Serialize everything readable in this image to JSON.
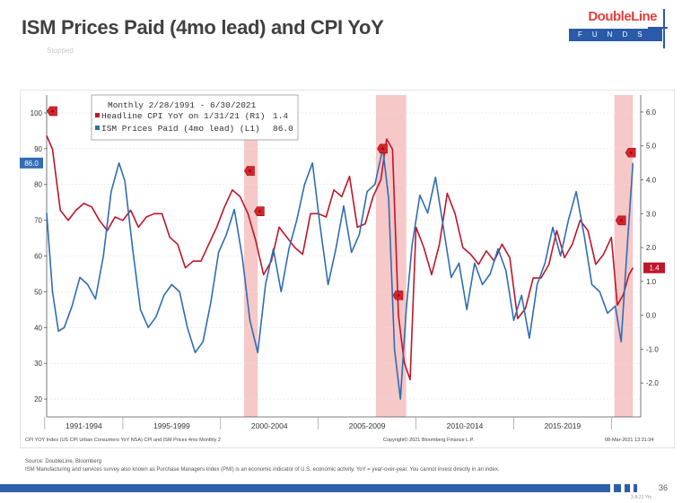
{
  "slide": {
    "title": "ISM Prices Paid (4mo lead) and CPI YoY",
    "status": "Stopped",
    "source_line1": "Source: DoubleLine, Bloomberg",
    "source_line2": "ISM Manufacturing and services survey also known as Purchase Managers Index (PMI) is an economic indicator of U.S. economic activity. YoY = year-over-year. You cannot invest directly in an index.",
    "page_number": "36",
    "footer_date": "3-8-21 Yts"
  },
  "logo": {
    "brand": "DoubleLine",
    "sub": "FUNDS"
  },
  "colors": {
    "cpi": "#c0152a",
    "ism": "#2f6db3",
    "recession": "#f6c8c8",
    "footer_bar": "#2f5fa8",
    "logo_red": "#e0413a"
  },
  "chart_data": {
    "type": "line",
    "legend": {
      "header": "Monthly 2/28/1991 - 6/30/2021",
      "placement": "top-left",
      "items": [
        {
          "label": "Headline CPI YoY on 1/31/21 (R1)",
          "value": "1.4",
          "color": "#c0152a"
        },
        {
          "label": "ISM Prices Paid (4mo lead) (L1)",
          "value": "86.0",
          "color": "#2f6db3"
        }
      ]
    },
    "xlim": [
      1991.1,
      2021.5
    ],
    "left_axis": {
      "ylim": [
        15,
        105
      ],
      "ticks": [
        20,
        30,
        40,
        50,
        60,
        70,
        80,
        90,
        100
      ],
      "current_value_label": "86.0"
    },
    "right_axis": {
      "ylim": [
        -3.0,
        6.5
      ],
      "ticks": [
        "6.0",
        "5.0",
        "4.0",
        "3.0",
        "2.0",
        "1.0",
        "0.0",
        "-1.0",
        "-2.0"
      ],
      "current_value_label": "1.4"
    },
    "x_period_labels": [
      "1991-1994",
      "1995-1999",
      "2000-2004",
      "2005-2009",
      "2010-2014",
      "2015-2019"
    ],
    "recessions": [
      [
        2001.2,
        2001.9
      ],
      [
        2007.95,
        2009.5
      ],
      [
        2020.15,
        2021.1
      ]
    ],
    "annotations": {
      "left_note": "CPI YOY Index (US CPI Urban Consumers YoY NSA) CPI and ISM Prices 4mo  Monthly 2",
      "center_note": "Copyright© 2021 Bloomberg Finance L.P.",
      "right_note": "08-Mar-2021 13:31:34"
    },
    "event_markers": [
      {
        "x": 1991.4,
        "axis": "left",
        "y": 100.5
      },
      {
        "x": 2001.5,
        "axis": "left",
        "y": 83.8
      },
      {
        "x": 2002.0,
        "axis": "left",
        "y": 72.5
      },
      {
        "x": 2008.3,
        "axis": "left",
        "y": 90.0
      },
      {
        "x": 2009.1,
        "axis": "left",
        "y": 49.0
      },
      {
        "x": 2020.5,
        "axis": "right",
        "y": 2.8
      },
      {
        "x": 2021.0,
        "axis": "right",
        "y": 4.8
      }
    ],
    "series": [
      {
        "name": "Headline CPI YoY on 1/31/21 (R1)",
        "axis": "right",
        "x": [
          1991.1,
          1991.4,
          1991.8,
          1992.2,
          1992.6,
          1993.0,
          1993.4,
          1993.8,
          1994.2,
          1994.6,
          1995.0,
          1995.4,
          1995.8,
          1996.2,
          1996.6,
          1997.0,
          1997.4,
          1997.8,
          1998.2,
          1998.6,
          1999.0,
          1999.4,
          1999.8,
          2000.2,
          2000.6,
          2001.0,
          2001.4,
          2001.8,
          2002.2,
          2002.6,
          2003.0,
          2003.4,
          2003.8,
          2004.2,
          2004.6,
          2005.0,
          2005.4,
          2005.8,
          2006.2,
          2006.6,
          2007.0,
          2007.4,
          2007.8,
          2008.2,
          2008.5,
          2008.8,
          2009.1,
          2009.4,
          2009.7,
          2010.0,
          2010.4,
          2010.8,
          2011.2,
          2011.6,
          2012.0,
          2012.4,
          2012.8,
          2013.2,
          2013.6,
          2014.0,
          2014.4,
          2014.8,
          2015.2,
          2015.6,
          2016.0,
          2016.4,
          2016.8,
          2017.2,
          2017.6,
          2018.0,
          2018.4,
          2018.8,
          2019.2,
          2019.6,
          2020.0,
          2020.3,
          2020.6,
          2020.9,
          2021.1
        ],
        "values": [
          5.3,
          4.9,
          3.1,
          2.8,
          3.1,
          3.3,
          3.2,
          2.8,
          2.5,
          2.9,
          2.8,
          3.1,
          2.6,
          2.9,
          3.0,
          3.0,
          2.3,
          2.1,
          1.4,
          1.6,
          1.6,
          2.1,
          2.6,
          3.2,
          3.7,
          3.5,
          3.0,
          2.2,
          1.2,
          1.6,
          2.6,
          2.3,
          2.0,
          1.8,
          3.0,
          3.0,
          2.9,
          3.7,
          3.5,
          4.1,
          2.6,
          2.7,
          3.5,
          4.0,
          5.2,
          4.9,
          0.0,
          -1.4,
          -1.9,
          2.6,
          2.0,
          1.2,
          2.1,
          3.6,
          3.0,
          2.0,
          1.8,
          1.5,
          1.9,
          1.6,
          2.1,
          1.7,
          -0.1,
          0.2,
          1.1,
          1.1,
          1.5,
          2.5,
          1.7,
          2.1,
          2.8,
          2.5,
          1.5,
          1.8,
          2.3,
          0.3,
          0.6,
          1.2,
          1.4
        ]
      },
      {
        "name": "ISM Prices Paid (4mo lead) (L1)",
        "axis": "left",
        "x": [
          1991.1,
          1991.4,
          1991.7,
          1992.0,
          1992.4,
          1992.8,
          1993.2,
          1993.6,
          1994.0,
          1994.4,
          1994.8,
          1995.1,
          1995.5,
          1995.9,
          1996.3,
          1996.7,
          1997.1,
          1997.5,
          1997.9,
          1998.3,
          1998.7,
          1999.1,
          1999.5,
          1999.9,
          2000.3,
          2000.7,
          2001.1,
          2001.5,
          2001.9,
          2002.3,
          2002.7,
          2003.1,
          2003.5,
          2003.9,
          2004.3,
          2004.7,
          2005.1,
          2005.5,
          2005.9,
          2006.3,
          2006.7,
          2007.1,
          2007.5,
          2007.9,
          2008.3,
          2008.6,
          2008.9,
          2009.2,
          2009.5,
          2009.8,
          2010.2,
          2010.6,
          2011.0,
          2011.4,
          2011.8,
          2012.2,
          2012.6,
          2013.0,
          2013.4,
          2013.8,
          2014.2,
          2014.6,
          2015.0,
          2015.4,
          2015.8,
          2016.2,
          2016.6,
          2017.0,
          2017.4,
          2017.8,
          2018.2,
          2018.6,
          2019.0,
          2019.4,
          2019.8,
          2020.2,
          2020.5,
          2020.8,
          2021.1
        ],
        "values": [
          72,
          50,
          39,
          40,
          46,
          54,
          52,
          48,
          60,
          78,
          86,
          81,
          62,
          45,
          40,
          43,
          49,
          52,
          50,
          40,
          33,
          36,
          47,
          61,
          66,
          73,
          60,
          42,
          33,
          52,
          62,
          50,
          62,
          70,
          80,
          86,
          68,
          52,
          62,
          74,
          61,
          66,
          78,
          80,
          90,
          76,
          34,
          20,
          45,
          63,
          77,
          72,
          82,
          68,
          54,
          58,
          45,
          58,
          52,
          55,
          62,
          56,
          42,
          49,
          37,
          52,
          58,
          68,
          60,
          70,
          78,
          66,
          52,
          50,
          44,
          46,
          36,
          62,
          86
        ]
      }
    ]
  }
}
